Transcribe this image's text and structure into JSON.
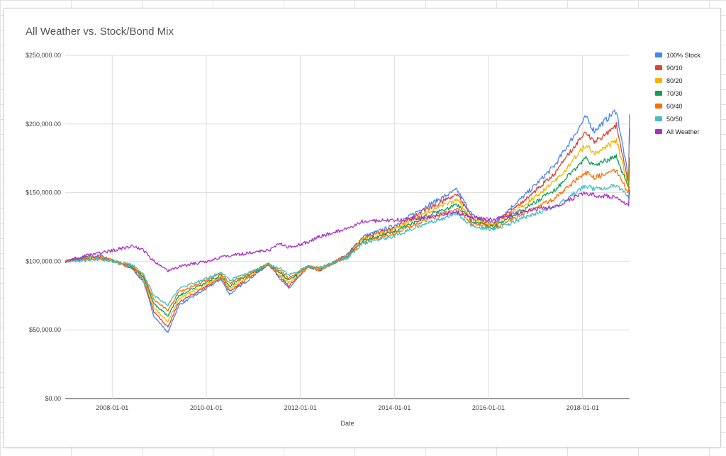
{
  "chart_data": {
    "type": "line",
    "title": "All Weather vs. Stock/Bond Mix",
    "xlabel": "Date",
    "ylabel": "",
    "ylim": [
      0,
      250000
    ],
    "xlim": [
      "2007-01-01",
      "2019-01-01"
    ],
    "x_ticks": [
      "2008-01-01",
      "2010-01-01",
      "2012-01-01",
      "2014-01-01",
      "2016-01-01",
      "2018-01-01"
    ],
    "y_ticks": [
      0,
      50000,
      100000,
      150000,
      200000,
      250000
    ],
    "y_tick_labels": [
      "$0.00",
      "$50,000.00",
      "$100,000.00",
      "$150,000.00",
      "$200,000.00",
      "$250,000.00"
    ],
    "grid": true,
    "legend_position": "right",
    "x": [
      "2007-01-01",
      "2007-06-01",
      "2007-10-01",
      "2008-06-01",
      "2008-09-01",
      "2008-11-20",
      "2009-03-09",
      "2009-06-01",
      "2010-01-01",
      "2010-04-23",
      "2010-07-01",
      "2011-04-29",
      "2011-08-01",
      "2011-10-03",
      "2012-03-01",
      "2012-06-01",
      "2013-01-01",
      "2013-05-01",
      "2014-01-01",
      "2014-09-01",
      "2015-05-01",
      "2015-09-01",
      "2016-02-11",
      "2016-11-01",
      "2017-06-01",
      "2018-01-26",
      "2018-04-01",
      "2018-09-20",
      "2018-12-24",
      "2019-01-01"
    ],
    "series": [
      {
        "name": "100% Stock",
        "color": "#4285f4",
        "values": [
          100000,
          103000,
          104000,
          95000,
          85000,
          60000,
          48000,
          68000,
          80000,
          87000,
          76000,
          98000,
          87000,
          80000,
          96000,
          93000,
          105000,
          118000,
          126000,
          140000,
          152000,
          133000,
          128000,
          150000,
          170000,
          205000,
          195000,
          210000,
          160000,
          207000
        ]
      },
      {
        "name": "90/10",
        "color": "#db4437",
        "values": [
          100000,
          102500,
          103500,
          95500,
          86500,
          63000,
          52000,
          70000,
          81500,
          88000,
          78000,
          98000,
          88500,
          82000,
          96000,
          93500,
          104500,
          117000,
          124500,
          137500,
          148500,
          131500,
          127000,
          146500,
          164000,
          195000,
          186500,
          199000,
          157500,
          196500
        ]
      },
      {
        "name": "80/20",
        "color": "#f4b400",
        "values": [
          100000,
          102000,
          103000,
          96000,
          87500,
          66000,
          56000,
          72500,
          83000,
          89000,
          80000,
          98000,
          90000,
          84000,
          96000,
          94000,
          104000,
          116000,
          123000,
          135000,
          145000,
          130000,
          126000,
          143000,
          158000,
          185000,
          178000,
          188000,
          155000,
          186000
        ]
      },
      {
        "name": "70/30",
        "color": "#0f9d58",
        "values": [
          100000,
          101500,
          102500,
          96500,
          88500,
          69000,
          60000,
          75000,
          84500,
          90000,
          82000,
          98000,
          91500,
          86000,
          96000,
          94500,
          103500,
          115000,
          121500,
          132500,
          141500,
          128500,
          125000,
          139500,
          152000,
          175000,
          169500,
          177000,
          152500,
          175500
        ]
      },
      {
        "name": "60/40",
        "color": "#ff6d00",
        "values": [
          100000,
          101000,
          102000,
          97000,
          89500,
          72000,
          64000,
          77500,
          86000,
          91000,
          84000,
          98000,
          93000,
          88000,
          96000,
          95000,
          103000,
          114000,
          120000,
          130000,
          138000,
          127000,
          124000,
          136000,
          146000,
          165000,
          161000,
          166000,
          150000,
          165000
        ]
      },
      {
        "name": "50/50",
        "color": "#46bdc6",
        "values": [
          100000,
          100500,
          101500,
          97500,
          90500,
          75000,
          68000,
          80000,
          87500,
          92000,
          86000,
          98000,
          94500,
          90000,
          96000,
          95500,
          102500,
          113000,
          118500,
          127500,
          134500,
          125500,
          123000,
          132500,
          140000,
          155000,
          152500,
          155000,
          147500,
          154500
        ]
      },
      {
        "name": "All Weather",
        "color": "#ab30c4",
        "values": [
          100000,
          104000,
          106000,
          111000,
          108000,
          100000,
          93000,
          96000,
          100000,
          103000,
          104000,
          108000,
          113000,
          110000,
          114000,
          118000,
          124000,
          129000,
          130000,
          132000,
          136000,
          132000,
          130000,
          137000,
          140000,
          150000,
          148000,
          147000,
          140000,
          152000
        ]
      }
    ]
  }
}
